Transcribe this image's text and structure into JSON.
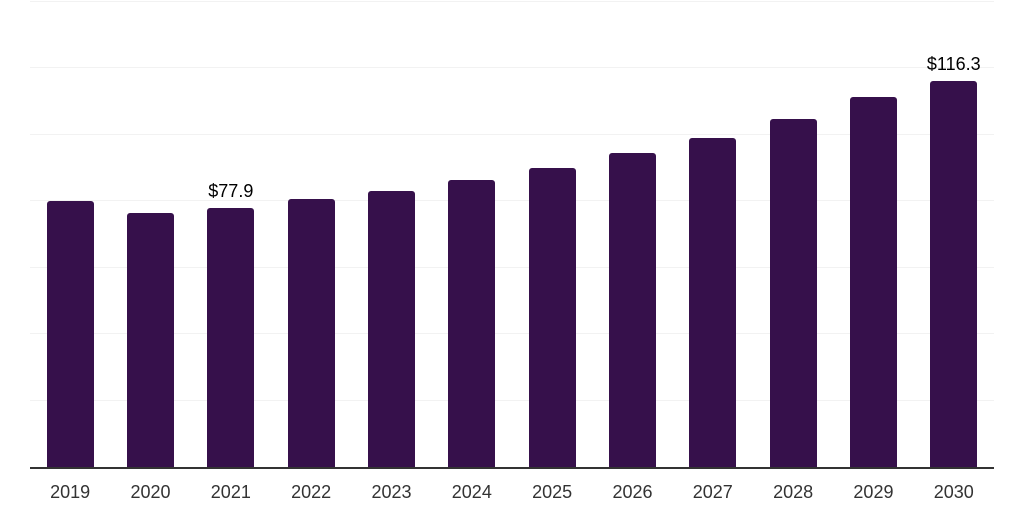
{
  "chart_data": {
    "type": "bar",
    "title": "",
    "xlabel": "",
    "ylabel": "",
    "categories": [
      "2019",
      "2020",
      "2021",
      "2022",
      "2023",
      "2024",
      "2025",
      "2026",
      "2027",
      "2028",
      "2029",
      "2030"
    ],
    "values": [
      80.0,
      76.4,
      77.9,
      80.6,
      83.2,
      86.4,
      90.0,
      94.5,
      99.1,
      104.9,
      111.4,
      116.3
    ],
    "data_labels": [
      "",
      "",
      "$77.9",
      "",
      "",
      "",
      "",
      "",
      "",
      "",
      "",
      "$116.3"
    ],
    "ylim": [
      0,
      140
    ],
    "gridline_step": 20,
    "grid": true,
    "legend": false,
    "legend_position": "none",
    "colors": {
      "bar": "#36104B",
      "gridline": "#f2f2f2",
      "axis": "#333333",
      "data_label": "#000000",
      "tick_label": "#333333",
      "background": "#ffffff"
    }
  }
}
